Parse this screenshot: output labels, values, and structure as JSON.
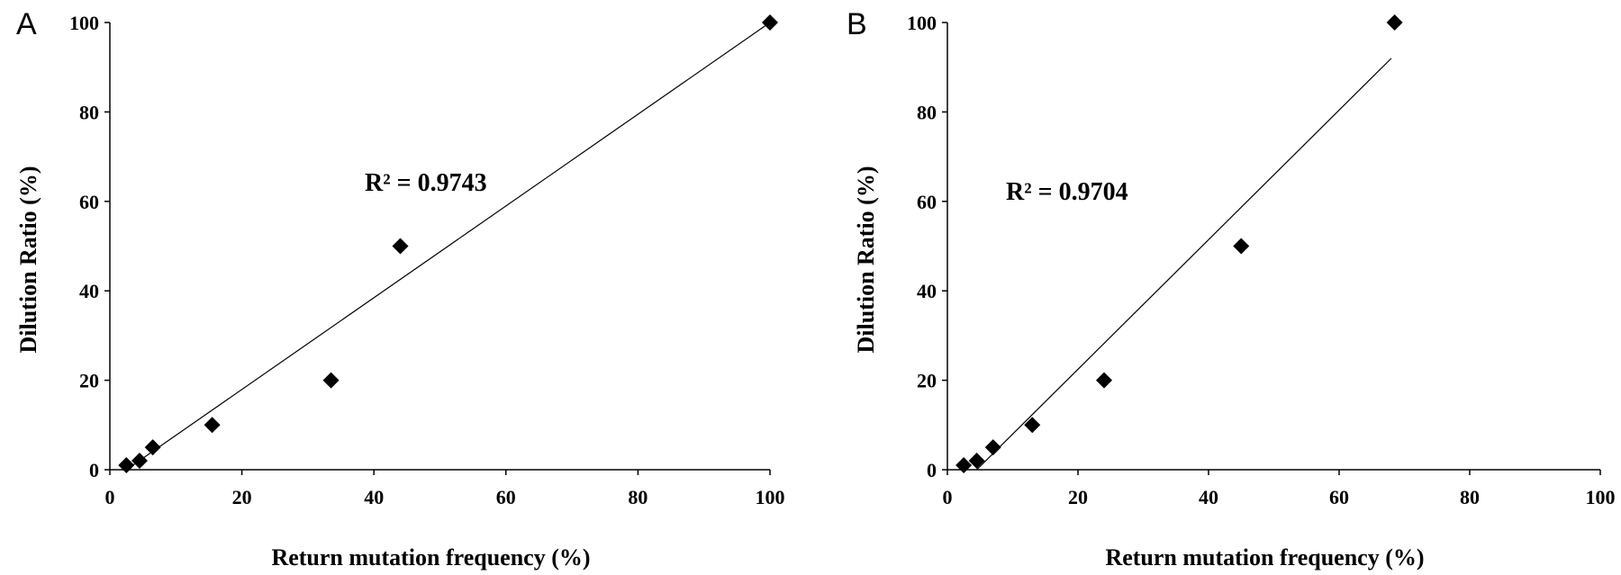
{
  "chart_data": [
    {
      "type": "scatter",
      "panel_label": "A",
      "xlabel": "Return mutation frequency (%)",
      "ylabel": "Dilution Ratio (%)",
      "xlim": [
        0,
        100
      ],
      "ylim": [
        0,
        100
      ],
      "xticks": [
        0,
        20,
        40,
        60,
        80,
        100
      ],
      "yticks": [
        0,
        20,
        40,
        60,
        80,
        100
      ],
      "points": [
        {
          "x": 2.5,
          "y": 1
        },
        {
          "x": 4.5,
          "y": 2
        },
        {
          "x": 6.5,
          "y": 5
        },
        {
          "x": 15.5,
          "y": 10
        },
        {
          "x": 33.5,
          "y": 20
        },
        {
          "x": 44,
          "y": 50
        },
        {
          "x": 100,
          "y": 100
        }
      ],
      "trendline": {
        "x": [
          2.5,
          100
        ],
        "y": [
          0,
          100
        ]
      },
      "annotation": "R² = 0.9743",
      "grid": false,
      "legend": "none"
    },
    {
      "type": "scatter",
      "panel_label": "B",
      "xlabel": "Return mutation frequency (%)",
      "ylabel": "Dilution Ratio (%)",
      "xlim": [
        0,
        100
      ],
      "ylim": [
        0,
        100
      ],
      "xticks": [
        0,
        20,
        40,
        60,
        80,
        100
      ],
      "yticks": [
        0,
        20,
        40,
        60,
        80,
        100
      ],
      "points": [
        {
          "x": 2.5,
          "y": 1
        },
        {
          "x": 4.5,
          "y": 2
        },
        {
          "x": 7,
          "y": 5
        },
        {
          "x": 13,
          "y": 10
        },
        {
          "x": 24,
          "y": 20
        },
        {
          "x": 45,
          "y": 50
        },
        {
          "x": 68.5,
          "y": 100
        }
      ],
      "trendline": {
        "x": [
          4.5,
          68
        ],
        "y": [
          0,
          92
        ]
      },
      "annotation": "R² = 0.9704",
      "grid": false,
      "legend": "none"
    }
  ]
}
